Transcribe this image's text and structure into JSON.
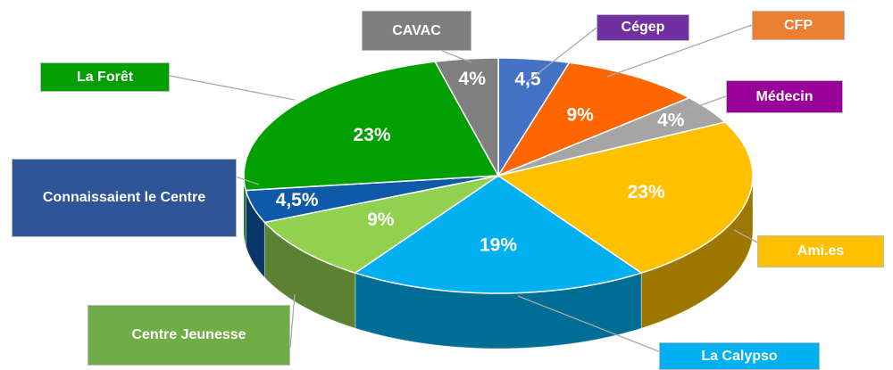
{
  "chart_data": {
    "type": "pie3d",
    "categories": [
      "Cégep",
      "CFP",
      "Médecin",
      "Ami.es",
      "La Calypso",
      "Centre Jeunesse",
      "Connaissaient le Centre",
      "La Forêt",
      "CAVAC"
    ],
    "values": [
      4.5,
      9,
      4,
      23,
      19,
      9,
      4.5,
      23,
      4
    ],
    "value_labels": [
      "4,5",
      "9%",
      "4%",
      "23%",
      "19%",
      "9%",
      "4,5%",
      "23%",
      "4%"
    ],
    "colors": [
      "#4472c4",
      "#ff6600",
      "#a5a5a5",
      "#ffc000",
      "#00b0f0",
      "#92d050",
      "#0f5aa8",
      "#00a000",
      "#808080"
    ],
    "label_colors": [
      "#7030a0",
      "#ed7d31",
      "#990099",
      "#ffc000",
      "#00b0f0",
      "#70ad47",
      "#2e5597",
      "#00a000",
      "#7f7f7f"
    ]
  }
}
